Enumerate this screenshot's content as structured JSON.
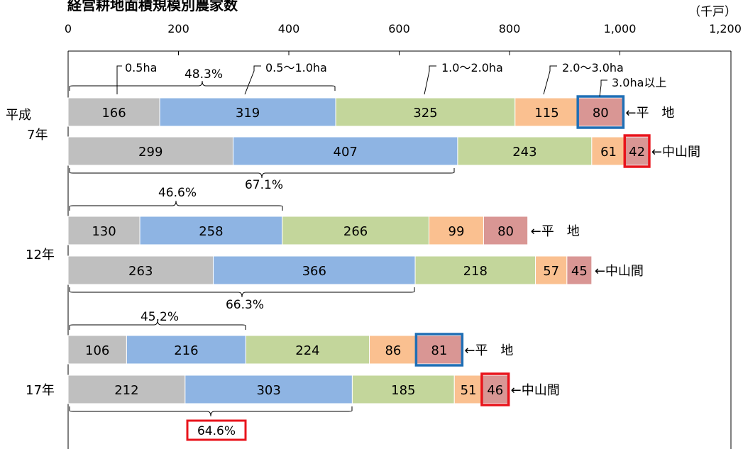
{
  "chart_data": {
    "type": "bar",
    "stacked": true,
    "orientation": "horizontal",
    "title": "経営耕地面積規模別農家数",
    "unit": "（千戸）",
    "xlim": [
      0,
      1200
    ],
    "xticks": [
      "0",
      "200",
      "400",
      "600",
      "800",
      "1,000",
      "1,200"
    ],
    "year_labels": [
      "平成",
      "7年",
      "12年",
      "17年"
    ],
    "series": [
      {
        "name": "0.5ha",
        "color": "#bfbfbf"
      },
      {
        "name": "0.5～1.0ha",
        "color": "#8eb4e3"
      },
      {
        "name": "1.0～2.0ha",
        "color": "#c3d69b"
      },
      {
        "name": "2.0～3.0ha",
        "color": "#fac090"
      },
      {
        "name": "3.0ha以上",
        "color": "#d99694"
      }
    ],
    "bars": [
      {
        "year": "平成7年",
        "label": "←平　地",
        "values": [
          166,
          319,
          325,
          115,
          80
        ]
      },
      {
        "year": "平成7年",
        "label": "←中山間",
        "values": [
          299,
          407,
          243,
          61,
          42
        ]
      },
      {
        "year": "12年",
        "label": "←平　地",
        "values": [
          130,
          258,
          266,
          99,
          80
        ]
      },
      {
        "year": "12年",
        "label": "←中山間",
        "values": [
          263,
          366,
          218,
          57,
          45
        ]
      },
      {
        "year": "17年",
        "label": "←平　地",
        "values": [
          106,
          216,
          224,
          86,
          81
        ]
      },
      {
        "year": "17年",
        "label": "←中山間",
        "values": [
          212,
          303,
          185,
          51,
          46
        ]
      }
    ],
    "brace_annotations": [
      "48.3%",
      "67.1%",
      "46.6%",
      "66.3%",
      "45.2%",
      "64.6%"
    ],
    "highlight_colors": {
      "blue": "#1f6fb5",
      "red": "#e8141c"
    }
  }
}
